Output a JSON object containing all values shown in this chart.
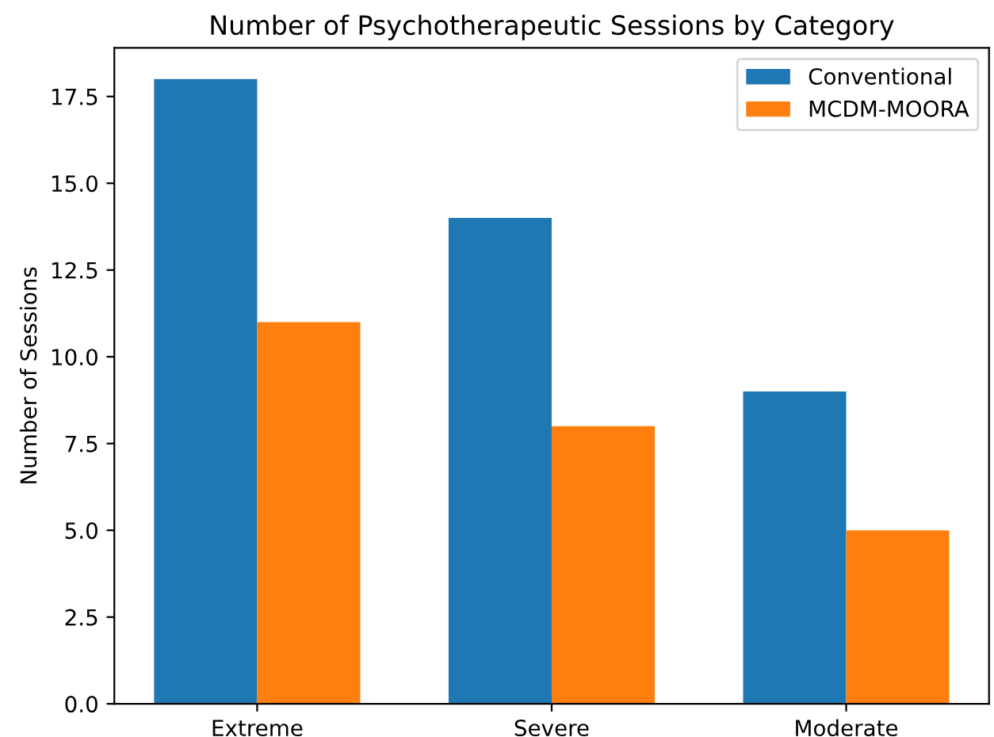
{
  "chart_data": {
    "type": "bar",
    "title": "Number of Psychotherapeutic Sessions by Category",
    "ylabel": "Number of Sessions",
    "categories": [
      "Extreme",
      "Severe",
      "Moderate"
    ],
    "series": [
      {
        "name": "Conventional",
        "color": "#1f77b4",
        "values": [
          18,
          14,
          9
        ]
      },
      {
        "name": "MCDM-MOORA",
        "color": "#ff7f0e",
        "values": [
          11,
          8,
          5
        ]
      }
    ],
    "ylim": [
      0,
      18.9
    ],
    "yticks": [
      {
        "value": 0,
        "label": "0.0"
      },
      {
        "value": 2.5,
        "label": "2.5"
      },
      {
        "value": 5,
        "label": "5.0"
      },
      {
        "value": 7.5,
        "label": "7.5"
      },
      {
        "value": 10,
        "label": "10.0"
      },
      {
        "value": 12.5,
        "label": "12.5"
      },
      {
        "value": 15,
        "label": "15.0"
      },
      {
        "value": 17.5,
        "label": "17.5"
      }
    ],
    "legend": "top right",
    "grid": false
  }
}
